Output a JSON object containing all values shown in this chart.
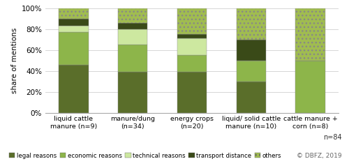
{
  "categories": [
    "liquid cattle\nmanure (n=9)",
    "manure/dung\n(n=34)",
    "energy crops\n(n=20)",
    "liquid/ solid cattle\nmanure (n=10)",
    "cattle manure +\ncorn (n=8)"
  ],
  "series": {
    "legal reasons": [
      0.46,
      0.39,
      0.39,
      0.3,
      0.0
    ],
    "economic reasons": [
      0.31,
      0.26,
      0.16,
      0.2,
      0.5
    ],
    "technical reasons": [
      0.06,
      0.15,
      0.16,
      0.0,
      0.0
    ],
    "transport distance": [
      0.07,
      0.06,
      0.04,
      0.2,
      0.0
    ],
    "others": [
      0.1,
      0.14,
      0.25,
      0.3,
      0.5
    ]
  },
  "colors": {
    "legal reasons": "#5a6e2a",
    "economic reasons": "#8db54a",
    "technical reasons": "#cde8a0",
    "transport distance": "#3a4a18",
    "others": "#a0bc50"
  },
  "hatch": {
    "legal reasons": "",
    "economic reasons": "",
    "technical reasons": "",
    "transport distance": "",
    "others": "..."
  },
  "ylabel": "share of mentions",
  "ylim": [
    0,
    1.0
  ],
  "yticks": [
    0.0,
    0.2,
    0.4,
    0.6,
    0.8,
    1.0
  ],
  "ytick_labels": [
    "0%",
    "20%",
    "40%",
    "60%",
    "80%",
    "100%"
  ],
  "note": "n=84",
  "credit": "© DBFZ, 2019",
  "background_color": "#ffffff",
  "bar_width": 0.5,
  "legend_order": [
    "legal reasons",
    "economic reasons",
    "technical reasons",
    "transport distance",
    "others"
  ]
}
